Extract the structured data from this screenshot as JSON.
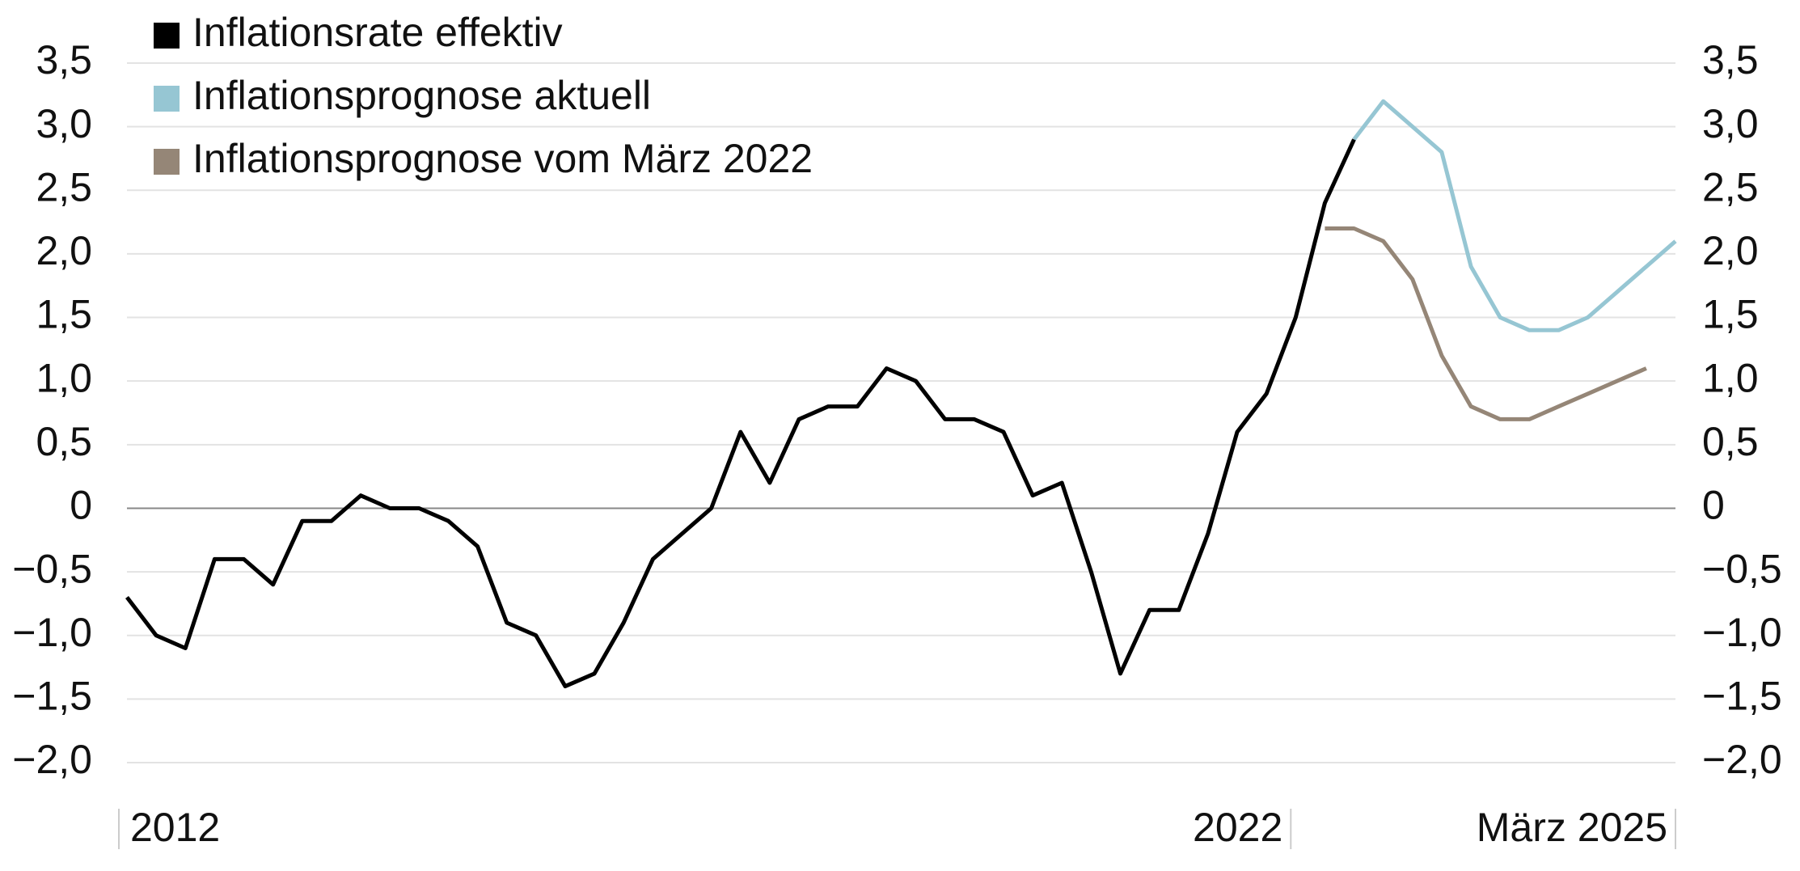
{
  "chart_data": {
    "type": "line",
    "categories": [
      "2012",
      null,
      null,
      null,
      null,
      null,
      null,
      null,
      null,
      null,
      null,
      null,
      null,
      null,
      null,
      null,
      null,
      null,
      null,
      null,
      null,
      null,
      null,
      null,
      null,
      null,
      null,
      null,
      null,
      null,
      null,
      null,
      null,
      null,
      null,
      null,
      null,
      null,
      null,
      null,
      "2022",
      null,
      null,
      null,
      null,
      null,
      null,
      null,
      null,
      null,
      null,
      null,
      null,
      "März 2025"
    ],
    "series": [
      {
        "name": "Inflationsrate effektiv",
        "color": "#000000",
        "values": [
          -0.7,
          -1.0,
          -1.1,
          -0.4,
          -0.4,
          -0.6,
          -0.1,
          -0.1,
          0.1,
          0.0,
          0.0,
          -0.1,
          -0.3,
          -0.9,
          -1.0,
          -1.4,
          -1.3,
          -0.9,
          -0.4,
          -0.2,
          0.0,
          0.6,
          0.2,
          0.7,
          0.8,
          0.8,
          1.1,
          1.0,
          0.7,
          0.7,
          0.6,
          0.1,
          0.2,
          -0.5,
          -1.3,
          -0.8,
          -0.8,
          -0.2,
          0.6,
          0.9,
          1.5,
          2.4,
          2.9,
          null,
          null,
          null,
          null,
          null,
          null,
          null,
          null,
          null,
          null,
          null
        ]
      },
      {
        "name": "Inflationsprognose aktuell",
        "color": "#96c6d3",
        "values": [
          null,
          null,
          null,
          null,
          null,
          null,
          null,
          null,
          null,
          null,
          null,
          null,
          null,
          null,
          null,
          null,
          null,
          null,
          null,
          null,
          null,
          null,
          null,
          null,
          null,
          null,
          null,
          null,
          null,
          null,
          null,
          null,
          null,
          null,
          null,
          null,
          null,
          null,
          null,
          null,
          null,
          null,
          2.9,
          3.2,
          3.0,
          2.8,
          1.9,
          1.5,
          1.4,
          1.4,
          1.5,
          1.7,
          1.9,
          2.1
        ]
      },
      {
        "name": "Inflationsprognose vom März 2022",
        "color": "#958677",
        "values": [
          null,
          null,
          null,
          null,
          null,
          null,
          null,
          null,
          null,
          null,
          null,
          null,
          null,
          null,
          null,
          null,
          null,
          null,
          null,
          null,
          null,
          null,
          null,
          null,
          null,
          null,
          null,
          null,
          null,
          null,
          null,
          null,
          null,
          null,
          null,
          null,
          null,
          null,
          null,
          null,
          null,
          2.2,
          2.2,
          2.1,
          1.8,
          1.2,
          0.8,
          0.7,
          0.7,
          0.8,
          0.9,
          1.0,
          1.1,
          null
        ]
      }
    ],
    "ylim": [
      -2.0,
      3.5
    ],
    "yticks": [
      {
        "value": -2.0,
        "label": "−2,0"
      },
      {
        "value": -1.5,
        "label": "−1,5"
      },
      {
        "value": -1.0,
        "label": "−1,0"
      },
      {
        "value": -0.5,
        "label": "−0,5"
      },
      0,
      {
        "value": 0.5,
        "label": "0,5"
      },
      {
        "value": 1.0,
        "label": "1,0"
      },
      {
        "value": 1.5,
        "label": "1,5"
      },
      {
        "value": 2.0,
        "label": "2,0"
      },
      {
        "value": 2.5,
        "label": "2,5"
      },
      {
        "value": 3.0,
        "label": "3,0"
      },
      {
        "value": 3.5,
        "label": "3,5"
      }
    ],
    "grid": true,
    "legend": "top-left"
  }
}
